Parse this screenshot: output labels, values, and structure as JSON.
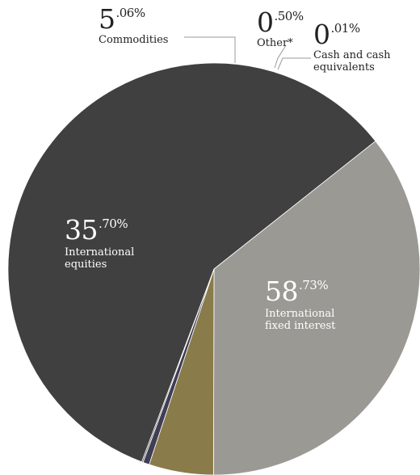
{
  "chart_data": {
    "type": "pie",
    "title": "",
    "slices": [
      {
        "label": "International fixed interest",
        "value": 58.73,
        "big": "58",
        "small": ".73%",
        "color": "#404040"
      },
      {
        "label": "International equities",
        "value": 35.7,
        "big": "35",
        "small": ".70%",
        "color": "#9b9994"
      },
      {
        "label": "Commodities",
        "value": 5.06,
        "big": "5",
        "small": ".06%",
        "color": "#8a7b4a"
      },
      {
        "label": "Other*",
        "value": 0.5,
        "big": "0",
        "small": ".50%",
        "color": "#3f3e55"
      },
      {
        "label": "Cash and cash equivalents",
        "value": 0.01,
        "big": "0",
        "small": ".01%",
        "color": "#6a6a6a"
      }
    ],
    "label_lines": [
      "Cash and cash",
      "equivalents"
    ],
    "fixed_lines": [
      "International",
      "fixed interest"
    ],
    "equities_lines": [
      "International",
      "equities"
    ]
  }
}
